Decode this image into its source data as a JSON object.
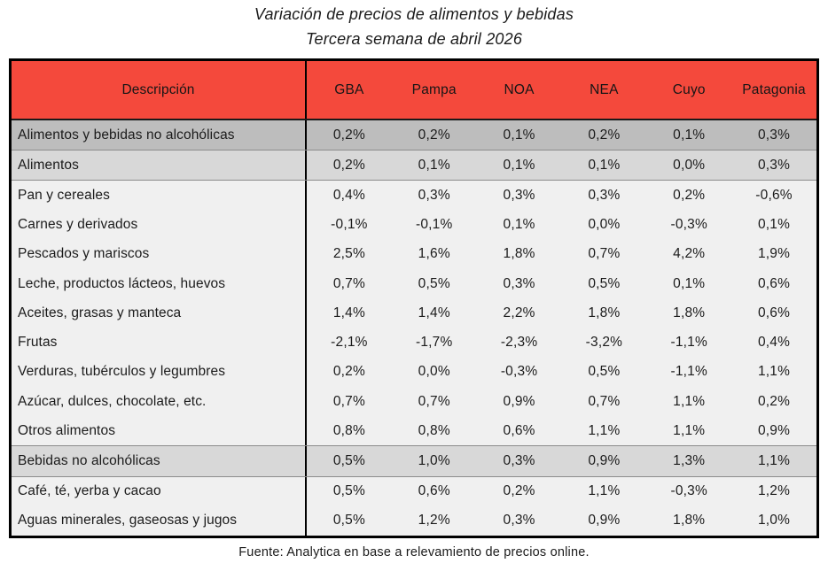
{
  "title": {
    "line1": "Variación de precios de alimentos y bebidas",
    "line2": "Tercera semana de abril 2026"
  },
  "colors": {
    "header_bg": "#f4493c",
    "row_dark": "#bdbdbd",
    "row_mid": "#d8d8d8",
    "row_light": "#f0f0f0",
    "table_border": "#000000",
    "text": "#1b1b1b"
  },
  "table": {
    "columns": [
      "Descripción",
      "GBA",
      "Pampa",
      "NOA",
      "NEA",
      "Cuyo",
      "Patagonia"
    ],
    "rows": [
      {
        "label": "Alimentos y bebidas no alcohólicas",
        "values": [
          "0,2%",
          "0,2%",
          "0,1%",
          "0,2%",
          "0,1%",
          "0,3%"
        ],
        "shade": "dark"
      },
      {
        "label": "Alimentos",
        "values": [
          "0,2%",
          "0,1%",
          "0,1%",
          "0,1%",
          "0,0%",
          "0,3%"
        ],
        "shade": "mid"
      },
      {
        "label": "Pan y cereales",
        "values": [
          "0,4%",
          "0,3%",
          "0,3%",
          "0,3%",
          "0,2%",
          "-0,6%"
        ],
        "shade": "light"
      },
      {
        "label": "Carnes y derivados",
        "values": [
          "-0,1%",
          "-0,1%",
          "0,1%",
          "0,0%",
          "-0,3%",
          "0,1%"
        ],
        "shade": "light"
      },
      {
        "label": "Pescados y mariscos",
        "values": [
          "2,5%",
          "1,6%",
          "1,8%",
          "0,7%",
          "4,2%",
          "1,9%"
        ],
        "shade": "light"
      },
      {
        "label": "Leche, productos lácteos, huevos",
        "values": [
          "0,7%",
          "0,5%",
          "0,3%",
          "0,5%",
          "0,1%",
          "0,6%"
        ],
        "shade": "light"
      },
      {
        "label": "Aceites, grasas y manteca",
        "values": [
          "1,4%",
          "1,4%",
          "2,2%",
          "1,8%",
          "1,8%",
          "0,6%"
        ],
        "shade": "light"
      },
      {
        "label": "Frutas",
        "values": [
          "-2,1%",
          "-1,7%",
          "-2,3%",
          "-3,2%",
          "-1,1%",
          "0,4%"
        ],
        "shade": "light"
      },
      {
        "label": "Verduras, tubérculos y legumbres",
        "values": [
          "0,2%",
          "0,0%",
          "-0,3%",
          "0,5%",
          "-1,1%",
          "1,1%"
        ],
        "shade": "light"
      },
      {
        "label": "Azúcar, dulces, chocolate, etc.",
        "values": [
          "0,7%",
          "0,7%",
          "0,9%",
          "0,7%",
          "1,1%",
          "0,2%"
        ],
        "shade": "light"
      },
      {
        "label": "Otros alimentos",
        "values": [
          "0,8%",
          "0,8%",
          "0,6%",
          "1,1%",
          "1,1%",
          "0,9%"
        ],
        "shade": "light"
      },
      {
        "label": "Bebidas no alcohólicas",
        "values": [
          "0,5%",
          "1,0%",
          "0,3%",
          "0,9%",
          "1,3%",
          "1,1%"
        ],
        "shade": "mid"
      },
      {
        "label": "Café, té, yerba y cacao",
        "values": [
          "0,5%",
          "0,6%",
          "0,2%",
          "1,1%",
          "-0,3%",
          "1,2%"
        ],
        "shade": "light"
      },
      {
        "label": "Aguas minerales, gaseosas y jugos",
        "values": [
          "0,5%",
          "1,2%",
          "0,3%",
          "0,9%",
          "1,8%",
          "1,0%"
        ],
        "shade": "light"
      }
    ]
  },
  "footer": {
    "source": "Fuente: Analytica en base a relevamiento de precios online."
  },
  "chart_data": {
    "type": "table",
    "title": "Variación de precios de alimentos y bebidas",
    "subtitle": "Tercera semana de abril 2026",
    "unit": "%",
    "decimal_separator": ",",
    "columns": [
      "GBA",
      "Pampa",
      "NOA",
      "NEA",
      "Cuyo",
      "Patagonia"
    ],
    "rows": [
      {
        "category": "Alimentos y bebidas no alcohólicas",
        "values": [
          0.2,
          0.2,
          0.1,
          0.2,
          0.1,
          0.3
        ]
      },
      {
        "category": "Alimentos",
        "values": [
          0.2,
          0.1,
          0.1,
          0.1,
          0.0,
          0.3
        ]
      },
      {
        "category": "Pan y cereales",
        "values": [
          0.4,
          0.3,
          0.3,
          0.3,
          0.2,
          -0.6
        ]
      },
      {
        "category": "Carnes y derivados",
        "values": [
          -0.1,
          -0.1,
          0.1,
          0.0,
          -0.3,
          0.1
        ]
      },
      {
        "category": "Pescados y mariscos",
        "values": [
          2.5,
          1.6,
          1.8,
          0.7,
          4.2,
          1.9
        ]
      },
      {
        "category": "Leche, productos lácteos, huevos",
        "values": [
          0.7,
          0.5,
          0.3,
          0.5,
          0.1,
          0.6
        ]
      },
      {
        "category": "Aceites, grasas y manteca",
        "values": [
          1.4,
          1.4,
          2.2,
          1.8,
          1.8,
          0.6
        ]
      },
      {
        "category": "Frutas",
        "values": [
          -2.1,
          -1.7,
          -2.3,
          -3.2,
          -1.1,
          0.4
        ]
      },
      {
        "category": "Verduras, tubérculos y legumbres",
        "values": [
          0.2,
          0.0,
          -0.3,
          0.5,
          -1.1,
          1.1
        ]
      },
      {
        "category": "Azúcar, dulces, chocolate, etc.",
        "values": [
          0.7,
          0.7,
          0.9,
          0.7,
          1.1,
          0.2
        ]
      },
      {
        "category": "Otros alimentos",
        "values": [
          0.8,
          0.8,
          0.6,
          1.1,
          1.1,
          0.9
        ]
      },
      {
        "category": "Bebidas no alcohólicas",
        "values": [
          0.5,
          1.0,
          0.3,
          0.9,
          1.3,
          1.1
        ]
      },
      {
        "category": "Café, té, yerba y cacao",
        "values": [
          0.5,
          0.6,
          0.2,
          1.1,
          -0.3,
          1.2
        ]
      },
      {
        "category": "Aguas minerales, gaseosas y jugos",
        "values": [
          0.5,
          1.2,
          0.3,
          0.9,
          1.8,
          1.0
        ]
      }
    ],
    "source": "Fuente: Analytica en base a relevamiento de precios online."
  }
}
